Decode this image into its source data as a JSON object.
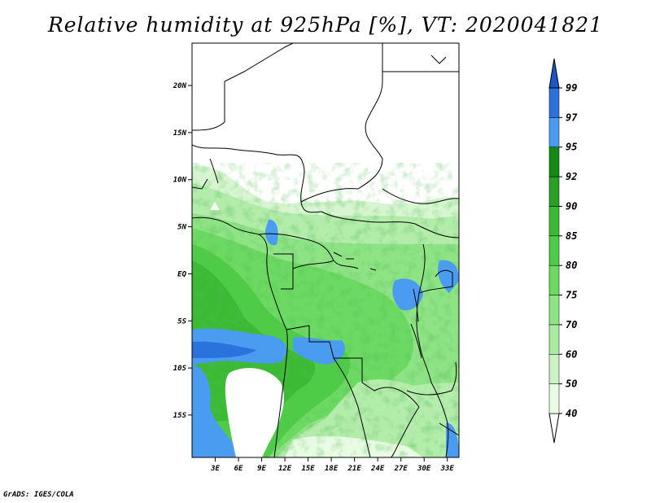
{
  "title": "Relative humidity at 925hPa [%], VT: 2020041821",
  "credit": "GrADS: IGES/COLA",
  "map": {
    "lat_range": [
      -19.5,
      24.5
    ],
    "lon_range": [
      0,
      34.5
    ],
    "lat_ticks": [
      {
        "value": 20,
        "label": "20N"
      },
      {
        "value": 15,
        "label": "15N"
      },
      {
        "value": 10,
        "label": "10N"
      },
      {
        "value": 5,
        "label": "5N"
      },
      {
        "value": 0,
        "label": "EQ"
      },
      {
        "value": -5,
        "label": "5S"
      },
      {
        "value": -10,
        "label": "10S"
      },
      {
        "value": -15,
        "label": "15S"
      }
    ],
    "lon_ticks": [
      {
        "value": 3,
        "label": "3E"
      },
      {
        "value": 6,
        "label": "6E"
      },
      {
        "value": 9,
        "label": "9E"
      },
      {
        "value": 12,
        "label": "12E"
      },
      {
        "value": 15,
        "label": "15E"
      },
      {
        "value": 18,
        "label": "18E"
      },
      {
        "value": 21,
        "label": "21E"
      },
      {
        "value": 24,
        "label": "24E"
      },
      {
        "value": 27,
        "label": "27E"
      },
      {
        "value": 30,
        "label": "30E"
      },
      {
        "value": 33,
        "label": "33E"
      }
    ]
  },
  "colorbar": {
    "levels": [
      "40",
      "50",
      "60",
      "70",
      "75",
      "80",
      "85",
      "90",
      "92",
      "95",
      "97",
      "99"
    ],
    "colors": [
      "#ffffff",
      "#e8fbe3",
      "#cbf3c4",
      "#a9eba1",
      "#8ee384",
      "#6cd962",
      "#4fcc47",
      "#3cba35",
      "#27a024",
      "#128a13",
      "#4a9cf0",
      "#2a72dc",
      "#1a56c8"
    ]
  }
}
